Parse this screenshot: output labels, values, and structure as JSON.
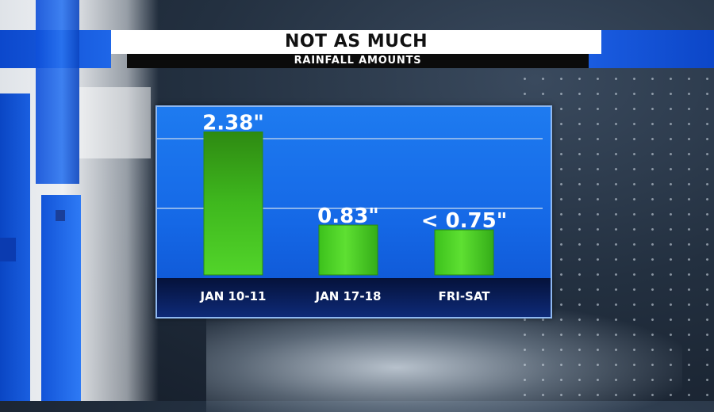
{
  "header": {
    "title": "NOT AS MUCH",
    "subtitle": "RAINFALL AMOUNTS"
  },
  "colors": {
    "bar_fill": "#4fd62a",
    "panel_blue": "#1568e6",
    "label_strip": "#0a1a4a"
  },
  "chart_data": {
    "type": "bar",
    "title": "NOT AS MUCH",
    "subtitle": "RAINFALL AMOUNTS",
    "categories": [
      "JAN 10-11",
      "JAN 17-18",
      "FRI-SAT"
    ],
    "values": [
      2.38,
      0.83,
      0.75
    ],
    "data_labels": [
      "2.38\"",
      "0.83\"",
      "< 0.75\""
    ],
    "ylim": [
      0,
      2.4
    ],
    "grid": true
  }
}
